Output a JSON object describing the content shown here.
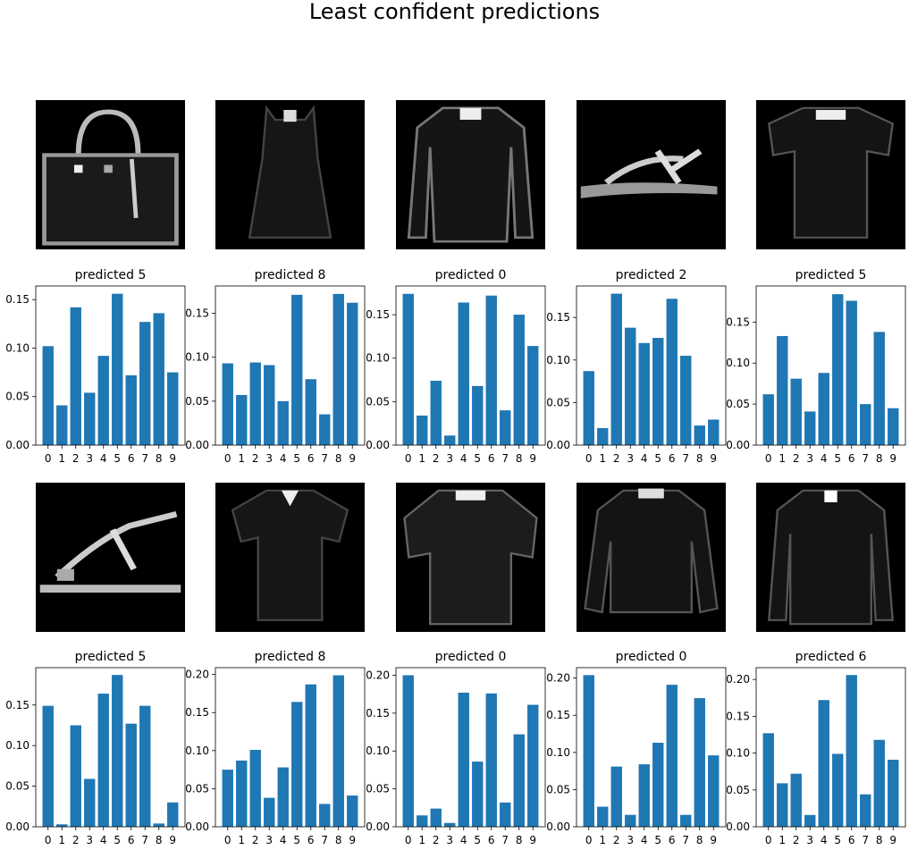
{
  "figure": {
    "title": "Least confident predictions"
  },
  "chart_data": [
    {
      "type": "bar",
      "title": "predicted 5",
      "image": "handbag",
      "categories": [
        "0",
        "1",
        "2",
        "3",
        "4",
        "5",
        "6",
        "7",
        "8",
        "9"
      ],
      "values": [
        0.102,
        0.041,
        0.142,
        0.054,
        0.092,
        0.156,
        0.072,
        0.127,
        0.136,
        0.075
      ],
      "ylim": [
        0,
        0.164
      ],
      "yticks": [
        "0.00",
        "0.05",
        "0.10",
        "0.15"
      ]
    },
    {
      "type": "bar",
      "title": "predicted 8",
      "image": "dress",
      "categories": [
        "0",
        "1",
        "2",
        "3",
        "4",
        "5",
        "6",
        "7",
        "8",
        "9"
      ],
      "values": [
        0.093,
        0.057,
        0.094,
        0.091,
        0.05,
        0.171,
        0.075,
        0.035,
        0.172,
        0.162
      ],
      "ylim": [
        0,
        0.181
      ],
      "yticks": [
        "0.00",
        "0.05",
        "0.10",
        "0.15"
      ]
    },
    {
      "type": "bar",
      "title": "predicted 0",
      "image": "shirt",
      "categories": [
        "0",
        "1",
        "2",
        "3",
        "4",
        "5",
        "6",
        "7",
        "8",
        "9"
      ],
      "values": [
        0.174,
        0.034,
        0.074,
        0.011,
        0.164,
        0.068,
        0.172,
        0.04,
        0.15,
        0.114
      ],
      "ylim": [
        0,
        0.183
      ],
      "yticks": [
        "0.00",
        "0.05",
        "0.10",
        "0.15"
      ]
    },
    {
      "type": "bar",
      "title": "predicted 2",
      "image": "sandal",
      "categories": [
        "0",
        "1",
        "2",
        "3",
        "4",
        "5",
        "6",
        "7",
        "8",
        "9"
      ],
      "values": [
        0.087,
        0.02,
        0.178,
        0.138,
        0.12,
        0.126,
        0.172,
        0.105,
        0.023,
        0.03
      ],
      "ylim": [
        0,
        0.187
      ],
      "yticks": [
        "0.00",
        "0.05",
        "0.10",
        "0.15"
      ]
    },
    {
      "type": "bar",
      "title": "predicted 5",
      "image": "tshirt",
      "categories": [
        "0",
        "1",
        "2",
        "3",
        "4",
        "5",
        "6",
        "7",
        "8",
        "9"
      ],
      "values": [
        0.062,
        0.133,
        0.081,
        0.041,
        0.088,
        0.184,
        0.176,
        0.05,
        0.138,
        0.045
      ],
      "ylim": [
        0,
        0.194
      ],
      "yticks": [
        "0.00",
        "0.05",
        "0.10",
        "0.15"
      ]
    },
    {
      "type": "bar",
      "title": "predicted 5",
      "image": "sandal2",
      "categories": [
        "0",
        "1",
        "2",
        "3",
        "4",
        "5",
        "6",
        "7",
        "8",
        "9"
      ],
      "values": [
        0.149,
        0.003,
        0.125,
        0.059,
        0.164,
        0.187,
        0.127,
        0.149,
        0.004,
        0.03
      ],
      "ylim": [
        0,
        0.196
      ],
      "yticks": [
        "0.00",
        "0.05",
        "0.10",
        "0.15"
      ]
    },
    {
      "type": "bar",
      "title": "predicted 8",
      "image": "tshirt2",
      "categories": [
        "0",
        "1",
        "2",
        "3",
        "4",
        "5",
        "6",
        "7",
        "8",
        "9"
      ],
      "values": [
        0.075,
        0.087,
        0.101,
        0.038,
        0.078,
        0.164,
        0.187,
        0.03,
        0.199,
        0.041
      ],
      "ylim": [
        0,
        0.209
      ],
      "yticks": [
        "0.00",
        "0.05",
        "0.10",
        "0.15",
        "0.20"
      ]
    },
    {
      "type": "bar",
      "title": "predicted 0",
      "image": "tshirt3",
      "categories": [
        "0",
        "1",
        "2",
        "3",
        "4",
        "5",
        "6",
        "7",
        "8",
        "9"
      ],
      "values": [
        0.2,
        0.015,
        0.024,
        0.005,
        0.177,
        0.086,
        0.176,
        0.032,
        0.122,
        0.161
      ],
      "ylim": [
        0,
        0.21
      ],
      "yticks": [
        "0.00",
        "0.05",
        "0.10",
        "0.15",
        "0.20"
      ]
    },
    {
      "type": "bar",
      "title": "predicted 0",
      "image": "pullover",
      "categories": [
        "0",
        "1",
        "2",
        "3",
        "4",
        "5",
        "6",
        "7",
        "8",
        "9"
      ],
      "values": [
        0.204,
        0.027,
        0.081,
        0.016,
        0.084,
        0.113,
        0.191,
        0.016,
        0.173,
        0.096
      ],
      "ylim": [
        0,
        0.214
      ],
      "yticks": [
        "0.00",
        "0.05",
        "0.10",
        "0.15",
        "0.20"
      ]
    },
    {
      "type": "bar",
      "title": "predicted 6",
      "image": "coat",
      "categories": [
        "0",
        "1",
        "2",
        "3",
        "4",
        "5",
        "6",
        "7",
        "8",
        "9"
      ],
      "values": [
        0.127,
        0.059,
        0.072,
        0.016,
        0.172,
        0.099,
        0.206,
        0.044,
        0.118,
        0.091
      ],
      "ylim": [
        0,
        0.216
      ],
      "yticks": [
        "0.00",
        "0.05",
        "0.10",
        "0.15",
        "0.20"
      ]
    }
  ],
  "colors": {
    "bar": "#1f77b4",
    "image_bg": "#000000"
  }
}
